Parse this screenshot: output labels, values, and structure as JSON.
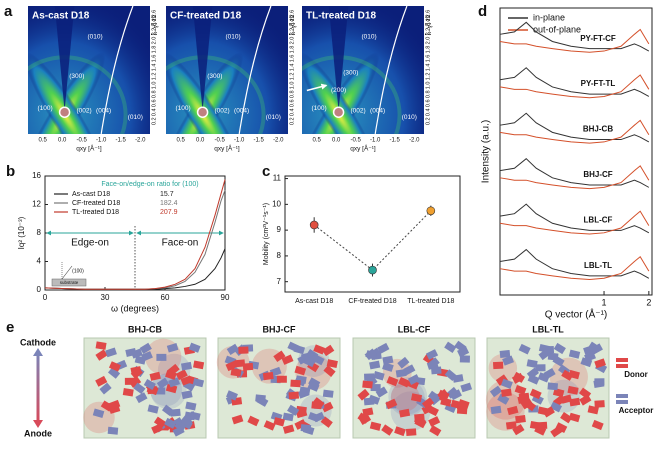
{
  "panel_labels": [
    "a",
    "b",
    "c",
    "d",
    "e"
  ],
  "giwaxs": {
    "x_label": "qxy [Å⁻¹]",
    "y_label": "qz [Å⁻¹]",
    "xticks": [
      "0.5",
      "0.0",
      "-0.5",
      "-1.0",
      "-1.5",
      "-2.0"
    ],
    "yticks": [
      "0.2",
      "0.4",
      "0.6",
      "0.8",
      "1.0",
      "1.2",
      "1.4",
      "1.6",
      "1.8",
      "2.0",
      "2.2",
      "2.4",
      "2.6"
    ],
    "images": [
      {
        "title": "As-cast D18",
        "peaks": [
          "(010)",
          "(300)",
          "(100)",
          "(002)",
          "(004)",
          "(010)"
        ]
      },
      {
        "title": "CF-treated D18",
        "peaks": [
          "(010)",
          "(300)",
          "(100)",
          "(002)",
          "(004)",
          "(010)"
        ]
      },
      {
        "title": "TL-treated D18",
        "peaks": [
          "(010)",
          "(300)",
          "(200)",
          "(100)",
          "(002)",
          "(004)",
          "(010)"
        ]
      }
    ]
  },
  "chart_data": [
    {
      "type": "line",
      "x_label": "ω (degrees)",
      "y_label": "Iq² (10⁻³)",
      "xlim": [
        0,
        90
      ],
      "xticks": [
        0,
        30,
        60,
        90
      ],
      "ylim": [
        0,
        16
      ],
      "yticks": [
        0,
        4,
        8,
        12,
        16
      ],
      "legend_title": "Face-on/edge-on ratio for (100)",
      "x": [
        0,
        10,
        20,
        30,
        40,
        45,
        50,
        55,
        60,
        65,
        70,
        75,
        80,
        85,
        88,
        90
      ],
      "series": [
        {
          "name": "As-cast D18",
          "color": "#222222",
          "ratio": 15.7,
          "values": [
            0.3,
            0.2,
            0.1,
            0.1,
            0.1,
            0.1,
            0.1,
            0.1,
            0.2,
            0.3,
            0.5,
            0.8,
            1.5,
            3,
            4.5,
            5.8
          ]
        },
        {
          "name": "CF-treated D18",
          "color": "#777777",
          "ratio": 182.4,
          "values": [
            0.3,
            0.2,
            0.1,
            0.1,
            0.1,
            0.1,
            0.1,
            0.2,
            0.3,
            0.6,
            1.2,
            2.5,
            5,
            9.5,
            12.5,
            14
          ]
        },
        {
          "name": "TL-treated D18",
          "color": "#c0392b",
          "ratio": 207.9,
          "values": [
            0.3,
            0.2,
            0.1,
            0.1,
            0.1,
            0.1,
            0.1,
            0.2,
            0.4,
            0.8,
            1.5,
            3,
            6,
            10.5,
            13.5,
            15.5
          ]
        }
      ],
      "divider_x": 45,
      "annotations": [
        "Edge-on",
        "Face-on",
        "(100)",
        "substrate"
      ]
    },
    {
      "type": "scatter",
      "y_label": "Mobility (cm²V⁻¹s⁻¹)",
      "categories": [
        "As-cast D18",
        "CF-treated D18",
        "TL-treated D18"
      ],
      "values": [
        9.2,
        7.45,
        9.75
      ],
      "errors": [
        0.3,
        0.25,
        0.2
      ],
      "colors": [
        "#e05040",
        "#2aa59a",
        "#f0a030"
      ],
      "ylim": [
        6.6,
        11.1
      ],
      "yticks": [
        7,
        8,
        9,
        10,
        11
      ]
    },
    {
      "type": "profiles",
      "x_label": "Q vector (Å⁻¹)",
      "y_label": "Intensity (a.u.)",
      "log_x": true,
      "xlim": [
        0.2,
        2.1
      ],
      "xticks": [
        1,
        2
      ],
      "ylim": [
        0.5,
        12.5
      ],
      "x": [
        0.2,
        0.25,
        0.3,
        0.35,
        0.45,
        0.6,
        0.8,
        1.0,
        1.3,
        1.6,
        1.75,
        2.0
      ],
      "series": [
        {
          "name": "in-plane",
          "color": "#333333"
        },
        {
          "name": "out-of-plane",
          "color": "#d4502a"
        }
      ],
      "samples": [
        {
          "label": "PY-FT-CF",
          "in_plane": [
            11.4,
            11.5,
            11.9,
            11.5,
            11.1,
            10.9,
            10.8,
            10.8,
            10.8,
            11.0,
            10.9,
            10.7
          ],
          "out_of_plane": [
            11.1,
            11.0,
            11.0,
            10.9,
            10.8,
            10.7,
            10.65,
            10.7,
            10.9,
            11.4,
            11.6,
            11.0
          ]
        },
        {
          "label": "PY-FT-TL",
          "in_plane": [
            9.5,
            9.6,
            10.0,
            9.6,
            9.2,
            9.0,
            8.9,
            8.9,
            8.9,
            9.1,
            9.0,
            8.8
          ],
          "out_of_plane": [
            9.2,
            9.1,
            9.1,
            9.0,
            8.9,
            8.8,
            8.75,
            8.8,
            9.0,
            9.5,
            9.7,
            9.1
          ]
        },
        {
          "label": "BHJ-CB",
          "in_plane": [
            7.6,
            7.7,
            8.1,
            7.7,
            7.3,
            7.1,
            7.0,
            7.0,
            7.0,
            7.2,
            7.1,
            6.9
          ],
          "out_of_plane": [
            7.3,
            7.2,
            7.2,
            7.1,
            7.0,
            6.9,
            6.85,
            6.9,
            7.1,
            7.6,
            7.8,
            7.2
          ]
        },
        {
          "label": "BHJ-CF",
          "in_plane": [
            5.7,
            5.8,
            6.2,
            5.8,
            5.4,
            5.2,
            5.1,
            5.1,
            5.1,
            5.3,
            5.2,
            5.0
          ],
          "out_of_plane": [
            5.4,
            5.3,
            5.3,
            5.2,
            5.1,
            5.0,
            4.95,
            5.0,
            5.2,
            5.7,
            5.9,
            5.3
          ]
        },
        {
          "label": "LBL-CF",
          "in_plane": [
            3.8,
            3.9,
            4.3,
            3.9,
            3.5,
            3.3,
            3.2,
            3.2,
            3.2,
            3.4,
            3.3,
            3.1
          ],
          "out_of_plane": [
            3.5,
            3.4,
            3.4,
            3.3,
            3.2,
            3.1,
            3.05,
            3.1,
            3.3,
            3.8,
            4.0,
            3.4
          ]
        },
        {
          "label": "LBL-TL",
          "in_plane": [
            1.9,
            2.0,
            2.4,
            2.0,
            1.6,
            1.4,
            1.3,
            1.3,
            1.3,
            1.5,
            1.4,
            1.2
          ],
          "out_of_plane": [
            1.6,
            1.5,
            1.5,
            1.4,
            1.3,
            1.2,
            1.15,
            1.2,
            1.4,
            1.9,
            2.1,
            1.5
          ]
        }
      ]
    }
  ],
  "diagram": {
    "titles": [
      "BHJ-CB",
      "BHJ-CF",
      "LBL-CF",
      "LBL-TL"
    ],
    "electrodes": {
      "top": "Cathode",
      "bottom": "Anode"
    },
    "legend": [
      {
        "name": "Donor",
        "color": "#e04848"
      },
      {
        "name": "Acceptor",
        "color": "#7b84b8"
      }
    ]
  }
}
